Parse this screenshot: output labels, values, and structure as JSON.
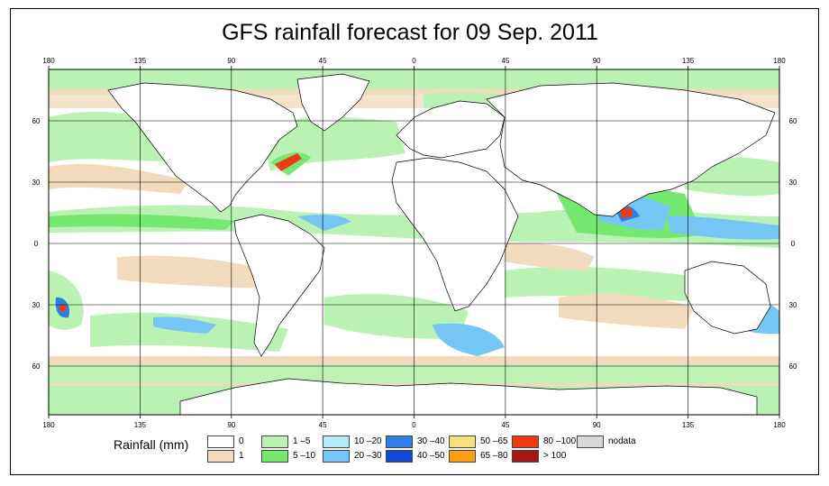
{
  "title": "GFS rainfall forecast for 09 Sep. 2011",
  "map": {
    "lon_ticks": [
      "180",
      "135",
      "90",
      "45",
      "0",
      "45",
      "90",
      "135",
      "180"
    ],
    "lat_ticks": [
      "60",
      "30",
      "0",
      "30",
      "60"
    ],
    "colors": {
      "ocean": "#ffffff",
      "c1": "#f2dbbd",
      "green1": "#b9f2b3",
      "green2": "#74e86f",
      "lblue1": "#b5ecf7",
      "lblue2": "#75c6f4",
      "blue1": "#2f7ee6",
      "blue2": "#1248d8",
      "yellow": "#f8df7d",
      "orange": "#fb9e16",
      "red": "#f03a12",
      "darkred": "#a51616",
      "nodata": "#d8d8d8"
    }
  },
  "legend": {
    "label": "Rainfall (mm)",
    "items": [
      {
        "label": "0",
        "color": "#ffffff"
      },
      {
        "label": "1",
        "color": "#f2dbbd"
      },
      {
        "label": "1 –5",
        "color": "#b9f2b3"
      },
      {
        "label": "5 –10",
        "color": "#74e86f"
      },
      {
        "label": "10 –20",
        "color": "#b5ecf7"
      },
      {
        "label": "20 –30",
        "color": "#75c6f4"
      },
      {
        "label": "30 –40",
        "color": "#2f7ee6"
      },
      {
        "label": "40 –50",
        "color": "#1248d8"
      },
      {
        "label": "50 –65",
        "color": "#f8df7d"
      },
      {
        "label": "65 –80",
        "color": "#fb9e16"
      },
      {
        "label": "80 –100",
        "color": "#f03a12"
      },
      {
        "label": "> 100",
        "color": "#a51616"
      },
      {
        "label": "nodata",
        "color": "#d8d8d8"
      }
    ]
  }
}
